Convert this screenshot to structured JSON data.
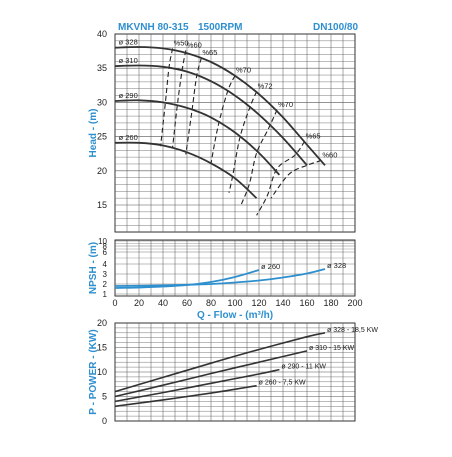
{
  "header": {
    "model": "MKVNH 80-315",
    "speed": "1500RPM",
    "size": "DN100/80"
  },
  "colors": {
    "blue": "#2e8fcf",
    "curve": "#333333",
    "grid": "#555555",
    "npsh_line": "#2e8fcf"
  },
  "chart_data": [
    {
      "type": "line",
      "name": "head",
      "ylabel": "Head - (m)",
      "xlim": [
        0,
        200
      ],
      "ylim": [
        10,
        40
      ],
      "ytick_labels": [
        "15",
        "20",
        "25",
        "30",
        "35",
        "40"
      ],
      "series": [
        {
          "name": "ø 328",
          "x": [
            0,
            20,
            40,
            60,
            80,
            100,
            120,
            140,
            160,
            175
          ],
          "y": [
            38,
            38.1,
            37.9,
            37.2,
            35.9,
            33.9,
            31.2,
            27.8,
            23.8,
            20.8
          ]
        },
        {
          "name": "ø 310",
          "x": [
            0,
            20,
            40,
            60,
            80,
            100,
            120,
            140,
            160
          ],
          "y": [
            35.3,
            35.4,
            35.2,
            34.5,
            33.1,
            31.0,
            28.2,
            24.8,
            20.8
          ]
        },
        {
          "name": "ø 290",
          "x": [
            0,
            20,
            40,
            60,
            80,
            100,
            120,
            137
          ],
          "y": [
            30.2,
            30.3,
            30.0,
            29.2,
            27.8,
            25.6,
            22.6,
            19.4
          ]
        },
        {
          "name": "ø 260",
          "x": [
            0,
            20,
            40,
            60,
            80,
            100,
            118
          ],
          "y": [
            24.1,
            24.1,
            23.7,
            22.7,
            21.1,
            18.9,
            16.0
          ]
        }
      ],
      "efficiency_curves": [
        {
          "label": "%50",
          "x": [
            48,
            45,
            42,
            38
          ],
          "y": [
            37.9,
            35.1,
            30.0,
            23.6
          ]
        },
        {
          "label": "%60",
          "x": [
            59,
            56,
            52,
            48
          ],
          "y": [
            37.6,
            34.8,
            29.7,
            23.4
          ]
        },
        {
          "label": "%65",
          "x": [
            72,
            68,
            64,
            59
          ],
          "y": [
            36.5,
            33.8,
            28.6,
            22.4
          ]
        },
        {
          "label": "%70",
          "x": [
            100,
            94,
            86,
            80
          ],
          "y": [
            33.9,
            31.7,
            26.6,
            21.1
          ]
        },
        {
          "label": "%72",
          "x": [
            118,
            112,
            104,
            98,
            95
          ],
          "y": [
            31.6,
            29.1,
            24.8,
            19.2,
            16.8
          ]
        },
        {
          "label": "%70",
          "x": [
            135,
            128,
            118,
            112,
            105
          ],
          "y": [
            28.9,
            26.2,
            22.6,
            18.1,
            15.0
          ]
        },
        {
          "label": "%65",
          "x": [
            158,
            150,
            135,
            127,
            118
          ],
          "y": [
            24.3,
            22.3,
            20.3,
            16.4,
            13.5
          ]
        },
        {
          "label": "%60",
          "x": [
            172,
            160,
            145,
            130
          ],
          "y": [
            21.5,
            20.8,
            19.5,
            16.0
          ]
        }
      ]
    },
    {
      "type": "line",
      "name": "npsh",
      "ylabel": "NPSH - (m)",
      "xlabel": "Q - Flow - (m³/h)",
      "xlim": [
        0,
        200
      ],
      "xtick_labels": [
        "0",
        "20",
        "40",
        "60",
        "80",
        "100",
        "120",
        "140",
        "160",
        "180",
        "200"
      ],
      "ytick_labels": [
        "1",
        "2",
        "3",
        "4",
        "6",
        "8",
        "10"
      ],
      "series": [
        {
          "name": "ø 260",
          "x": [
            0,
            20,
            40,
            60,
            80,
            100,
            120
          ],
          "y": [
            1.6,
            1.65,
            1.75,
            1.9,
            2.2,
            2.7,
            3.4
          ]
        },
        {
          "name": "ø 328",
          "x": [
            0,
            20,
            40,
            60,
            80,
            100,
            120,
            140,
            160,
            175
          ],
          "y": [
            1.8,
            1.82,
            1.86,
            1.92,
            2.0,
            2.15,
            2.35,
            2.65,
            3.05,
            3.5
          ]
        }
      ]
    },
    {
      "type": "line",
      "name": "power",
      "ylabel": "P - POWER - (KW)",
      "xlim": [
        0,
        200
      ],
      "ylim": [
        0,
        20
      ],
      "ytick_labels": [
        "0",
        "5",
        "10",
        "15",
        "20"
      ],
      "series": [
        {
          "name": "ø 328 - 18,5 KW",
          "x": [
            0,
            40,
            80,
            120,
            160,
            175
          ],
          "y": [
            6.0,
            8.9,
            11.8,
            14.6,
            17.2,
            18.0
          ]
        },
        {
          "name": "ø 310 - 15 KW",
          "x": [
            0,
            40,
            80,
            120,
            160
          ],
          "y": [
            5.0,
            7.3,
            9.7,
            12.0,
            14.3
          ]
        },
        {
          "name": "ø 290 - 11 KW",
          "x": [
            0,
            40,
            80,
            120,
            137
          ],
          "y": [
            4.0,
            5.8,
            7.7,
            9.6,
            10.5
          ]
        },
        {
          "name": "ø 260 - 7,5 KW",
          "x": [
            0,
            40,
            80,
            118
          ],
          "y": [
            3.0,
            4.3,
            5.7,
            7.2
          ]
        }
      ]
    }
  ]
}
